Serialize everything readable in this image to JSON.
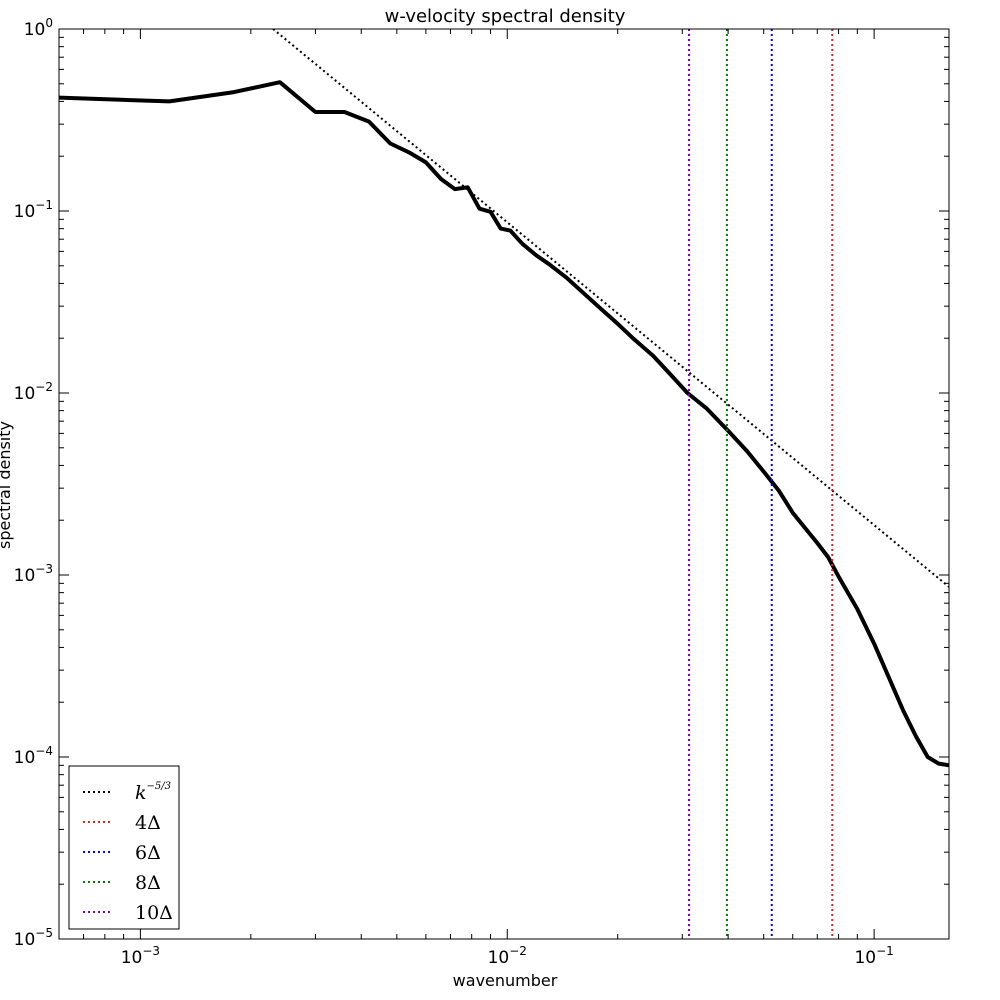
{
  "chart_data": {
    "type": "line",
    "title": "w-velocity spectral density",
    "xlabel": "wavenumber",
    "ylabel": "spectral density",
    "xscale": "log",
    "yscale": "log",
    "xlim": [
      0.0006,
      0.16
    ],
    "ylim": [
      1e-05,
      1
    ],
    "grid": false,
    "legend_position": "bottom-left",
    "x_ticks": [
      {
        "value": 0.001,
        "base": "10",
        "exp": "-3"
      },
      {
        "value": 0.01,
        "base": "10",
        "exp": "-2"
      },
      {
        "value": 0.1,
        "base": "10",
        "exp": "-1"
      }
    ],
    "y_ticks": [
      {
        "value": 1e-05,
        "base": "10",
        "exp": "-5"
      },
      {
        "value": 0.0001,
        "base": "10",
        "exp": "-4"
      },
      {
        "value": 0.001,
        "base": "10",
        "exp": "-3"
      },
      {
        "value": 0.01,
        "base": "10",
        "exp": "-2"
      },
      {
        "value": 0.1,
        "base": "10",
        "exp": "-1"
      },
      {
        "value": 1,
        "base": "10",
        "exp": "0"
      }
    ],
    "series": [
      {
        "color": "#000000",
        "style": "solid",
        "x": [
          0.0006,
          0.0012,
          0.0018,
          0.0024,
          0.003,
          0.0036,
          0.0042,
          0.0048,
          0.0054,
          0.006,
          0.0066,
          0.0072,
          0.0078,
          0.0084,
          0.009,
          0.0096,
          0.0102,
          0.011,
          0.012,
          0.013,
          0.0145,
          0.016,
          0.018,
          0.02,
          0.022,
          0.025,
          0.028,
          0.031,
          0.035,
          0.04,
          0.045,
          0.05,
          0.055,
          0.06,
          0.07,
          0.075,
          0.08,
          0.09,
          0.1,
          0.11,
          0.12,
          0.13,
          0.14,
          0.15,
          0.16
        ],
        "y": [
          0.42,
          0.4,
          0.45,
          0.51,
          0.35,
          0.35,
          0.31,
          0.235,
          0.21,
          0.185,
          0.15,
          0.132,
          0.135,
          0.103,
          0.099,
          0.08,
          0.078,
          0.066,
          0.057,
          0.051,
          0.043,
          0.036,
          0.029,
          0.024,
          0.02,
          0.016,
          0.0125,
          0.01,
          0.0082,
          0.0062,
          0.0048,
          0.0037,
          0.0029,
          0.0022,
          0.0015,
          0.00125,
          0.00098,
          0.00065,
          0.00042,
          0.00027,
          0.00018,
          0.00013,
          0.0001,
          9.2e-05,
          9e-05
        ]
      },
      {
        "name": "k^{-5/3}",
        "color": "#000000",
        "style": "dotted",
        "x": [
          0.0023,
          0.16
        ],
        "y": [
          1.0,
          0.00086
        ]
      },
      {
        "name": "4Δ",
        "color": "#d62728",
        "style": "dotted",
        "vlines": [
          0.0313,
          0.0769
        ]
      },
      {
        "name": "6Δ",
        "color": "#0000ff",
        "style": "dotted",
        "vlines": [
          0.0526
        ]
      },
      {
        "name": "8Δ",
        "color": "#008000",
        "style": "dotted",
        "vlines": [
          0.0397
        ]
      },
      {
        "name": "10Δ",
        "color": "#7f00bf",
        "style": "dotted",
        "vlines": [
          0.0313
        ]
      }
    ],
    "legend": [
      {
        "symbol": "k",
        "sup": "−5/3",
        "color": "#000000",
        "kind": "math"
      },
      {
        "label": "4Δ",
        "color": "#d62728",
        "kind": "text"
      },
      {
        "label": "6Δ",
        "color": "#0000ff",
        "kind": "text"
      },
      {
        "label": "8Δ",
        "color": "#008000",
        "kind": "text"
      },
      {
        "label": "10Δ",
        "color": "#7f00bf",
        "kind": "text"
      }
    ]
  }
}
